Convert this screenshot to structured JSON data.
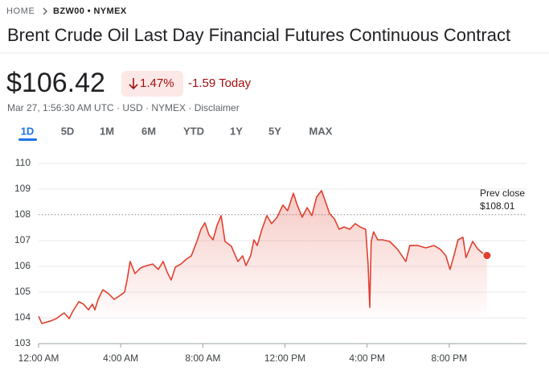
{
  "breadcrumb": {
    "home": "HOME",
    "symbol": "BZW00 • NYMEX"
  },
  "title": "Brent Crude Oil Last Day Financial Futures Continuous Contract",
  "price": "$106.42",
  "change_percent": "1.47%",
  "change": "-1.59 Today",
  "meta": "Mar 27, 1:56:30 AM UTC · USD · NYMEX · Disclaimer",
  "tabs": [
    "1D",
    "5D",
    "1M",
    "6M",
    "YTD",
    "1Y",
    "5Y",
    "MAX"
  ],
  "chart_data": {
    "type": "line",
    "x": [
      0,
      0.16,
      0.55,
      0.86,
      1.06,
      1.25,
      1.49,
      1.64,
      1.96,
      2.19,
      2.43,
      2.62,
      2.74,
      2.9,
      3.13,
      3.41,
      3.68,
      3.99,
      4.19,
      4.31,
      4.46,
      4.7,
      4.97,
      5.28,
      5.56,
      5.83,
      6.07,
      6.26,
      6.46,
      6.66,
      6.93,
      7.2,
      7.44,
      7.71,
      7.91,
      8.1,
      8.3,
      8.5,
      8.69,
      8.89,
      9.08,
      9.39,
      9.71,
      9.94,
      10.1,
      10.33,
      10.49,
      10.65,
      10.88,
      11.12,
      11.35,
      11.62,
      11.9,
      12.13,
      12.41,
      12.6,
      12.84,
      13.08,
      13.31,
      13.54,
      13.78,
      13.94,
      14.17,
      14.41,
      14.64,
      14.88,
      15.15,
      15.42,
      15.66,
      15.93,
      16.05,
      16.13,
      16.2,
      16.32,
      16.52,
      16.75,
      17.1,
      17.49,
      17.89,
      18.08,
      18.47,
      18.86,
      19.26,
      19.57,
      19.84,
      20.04,
      20.23,
      20.43,
      20.67,
      20.82,
      21.14,
      21.41,
      21.6,
      21.84
    ],
    "series": [
      {
        "name": "BZW00",
        "color": "#e0402f",
        "values": [
          104.06,
          103.78,
          103.87,
          103.97,
          104.09,
          104.19,
          103.97,
          104.22,
          104.63,
          104.53,
          104.31,
          104.53,
          104.31,
          104.72,
          105.09,
          104.94,
          104.72,
          104.88,
          105.0,
          105.47,
          106.19,
          105.72,
          105.94,
          106.03,
          106.09,
          105.88,
          106.19,
          105.78,
          105.47,
          105.97,
          106.09,
          106.28,
          106.41,
          106.97,
          107.44,
          107.69,
          107.22,
          107.03,
          107.59,
          107.97,
          106.97,
          106.78,
          106.19,
          106.41,
          106.03,
          106.41,
          107.03,
          106.81,
          107.44,
          107.97,
          107.66,
          107.91,
          108.38,
          108.16,
          108.84,
          108.38,
          107.91,
          108.28,
          107.97,
          108.69,
          108.94,
          108.59,
          108.06,
          107.84,
          107.44,
          107.53,
          107.44,
          107.66,
          107.53,
          107.44,
          106.09,
          104.41,
          106.97,
          107.34,
          107.03,
          107.03,
          106.97,
          106.66,
          106.19,
          106.81,
          106.81,
          106.72,
          106.81,
          106.66,
          106.41,
          105.88,
          106.41,
          107.03,
          107.13,
          106.34,
          106.97,
          106.66,
          106.53,
          106.42
        ]
      }
    ],
    "xlim": [
      0,
      24
    ],
    "xticks": [
      {
        "value": 0,
        "label": "12:00 AM"
      },
      {
        "value": 4,
        "label": "4:00 AM"
      },
      {
        "value": 8,
        "label": "8:00 AM"
      },
      {
        "value": 12,
        "label": "12:00 PM"
      },
      {
        "value": 16,
        "label": "4:00 PM"
      },
      {
        "value": 20,
        "label": "8:00 PM"
      }
    ],
    "ylim": [
      103,
      110
    ],
    "yticks": [
      103,
      104,
      105,
      106,
      107,
      108,
      109,
      110
    ],
    "grid": true,
    "reference_line": {
      "label": "Prev close",
      "value": 108.01,
      "value_label": "$108.01"
    }
  }
}
